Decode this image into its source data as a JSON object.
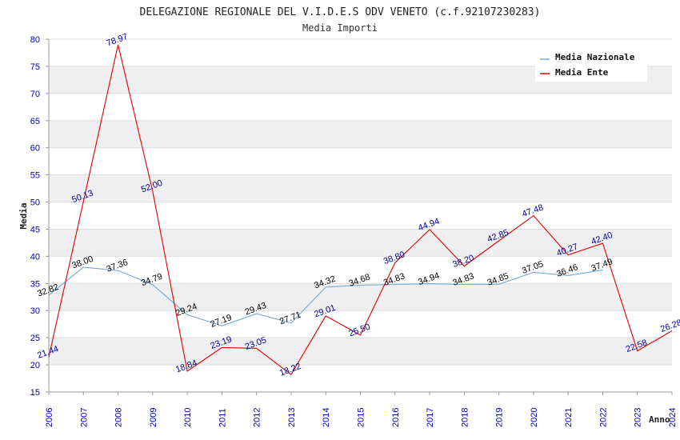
{
  "chart_data": {
    "type": "line",
    "title": "DELEGAZIONE REGIONALE DEL V.I.D.E.S ODV VENETO (c.f.92107230283)",
    "subtitle": "Media Importi",
    "xlabel": "Anno",
    "ylabel": "Media",
    "ylim": [
      15,
      80
    ],
    "yticks": [
      "15",
      "20",
      "25",
      "30",
      "35",
      "40",
      "45",
      "50",
      "55",
      "60",
      "65",
      "70",
      "75",
      "80"
    ],
    "categories": [
      "2006",
      "2007",
      "2008",
      "2009",
      "2010",
      "2011",
      "2012",
      "2013",
      "2014",
      "2015",
      "2016",
      "2017",
      "2018",
      "2019",
      "2020",
      "2021",
      "2022",
      "2023",
      "2024"
    ],
    "legend_position": "top-right",
    "grid": true,
    "series": [
      {
        "name": "Media Nazionale",
        "color": "#6fa8dc",
        "label_color": "#000000",
        "values": [
          32.82,
          38.0,
          37.36,
          34.79,
          29.24,
          27.19,
          29.43,
          27.71,
          34.32,
          34.68,
          34.83,
          34.94,
          34.83,
          34.85,
          37.05,
          36.46,
          37.49,
          null,
          null
        ],
        "labels": [
          "32.82",
          "38.00",
          "37.36",
          "34.79",
          "29.24",
          "27.19",
          "29.43",
          "27.71",
          "34.32",
          "34.68",
          "34.83",
          "34.94",
          "34.83",
          "34.85",
          "37.05",
          "36.46",
          "37.49",
          "",
          ""
        ]
      },
      {
        "name": "Media Ente",
        "color": "#dd0000",
        "label_color": "#000099",
        "values": [
          21.44,
          50.13,
          78.97,
          52.0,
          18.84,
          23.19,
          23.05,
          18.22,
          29.01,
          25.5,
          38.8,
          44.94,
          38.2,
          42.85,
          47.48,
          40.27,
          42.4,
          22.58,
          26.28
        ],
        "labels": [
          "21.44",
          "50.13",
          "78.97",
          "52.00",
          "18.84",
          "23.19",
          "23.05",
          "18.22",
          "29.01",
          "25.50",
          "38.80",
          "44.94",
          "38.20",
          "42.85",
          "47.48",
          "40.27",
          "42.40",
          "22.58",
          "26.28"
        ]
      }
    ]
  }
}
